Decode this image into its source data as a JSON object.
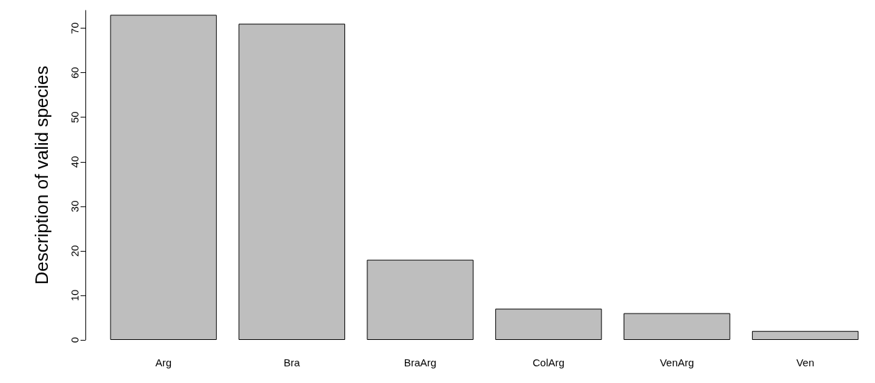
{
  "chart_data": {
    "type": "bar",
    "ylabel": "Description of valid species",
    "categories": [
      "Arg",
      "Bra",
      "BraArg",
      "ColArg",
      "VenArg",
      "Ven"
    ],
    "values": [
      73,
      71,
      18,
      7,
      6,
      2
    ],
    "color": "#bebebe",
    "ylim": [
      0,
      74
    ],
    "yticks": [
      0,
      10,
      20,
      30,
      40,
      50,
      60,
      70
    ],
    "grid": false
  }
}
